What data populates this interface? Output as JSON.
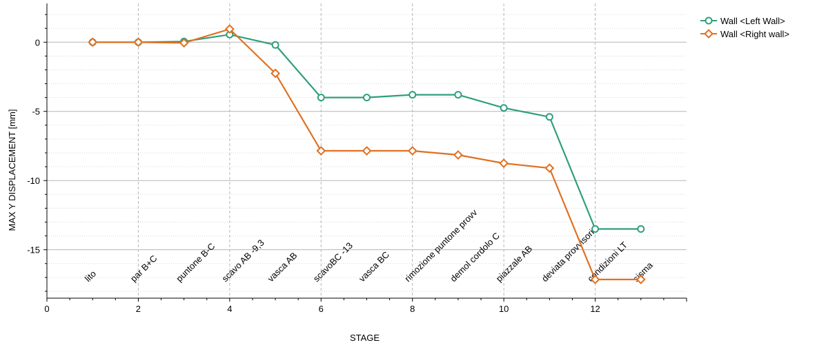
{
  "chart_data": {
    "type": "line",
    "xlabel": "STAGE",
    "ylabel": "MAX Y DISPLACEMENT [mm]",
    "xlim": [
      0,
      14
    ],
    "ylim": [
      -18.5,
      2.8
    ],
    "xticks": [
      0,
      2,
      4,
      6,
      8,
      10,
      12
    ],
    "yticks": [
      0,
      -5,
      -10,
      -15
    ],
    "grid": true,
    "legend_position": "top-right",
    "stage_labels": [
      {
        "x": 1,
        "label": "lito"
      },
      {
        "x": 2,
        "label": "par B+C"
      },
      {
        "x": 3,
        "label": "puntone B-C"
      },
      {
        "x": 4,
        "label": "scavo AB -9,3"
      },
      {
        "x": 5,
        "label": "vasca AB"
      },
      {
        "x": 6,
        "label": "scavoBC -13"
      },
      {
        "x": 7,
        "label": "vasca BC"
      },
      {
        "x": 8,
        "label": "rimozione puntone provv"
      },
      {
        "x": 9,
        "label": "demol cordolo C"
      },
      {
        "x": 10,
        "label": "piazzale AB"
      },
      {
        "x": 11,
        "label": "deviata provvisoria"
      },
      {
        "x": 12,
        "label": "condizioni LT"
      },
      {
        "x": 13,
        "label": "sisma"
      }
    ],
    "series": [
      {
        "name": "Wall <Left Wall>",
        "color": "#2e9e7e",
        "marker": "circle",
        "x": [
          1,
          2,
          3,
          4,
          5,
          6,
          7,
          8,
          9,
          10,
          11,
          12,
          13
        ],
        "values": [
          0,
          0,
          0.05,
          0.55,
          -0.2,
          -4.0,
          -4.0,
          -3.8,
          -3.8,
          -4.75,
          -5.4,
          -13.5,
          -13.5
        ]
      },
      {
        "name": "Wall <Right wall>",
        "color": "#e07020",
        "marker": "diamond",
        "x": [
          1,
          2,
          3,
          4,
          5,
          6,
          7,
          8,
          9,
          10,
          11,
          12,
          13
        ],
        "values": [
          0,
          0,
          -0.05,
          0.95,
          -2.25,
          -7.85,
          -7.85,
          -7.85,
          -8.15,
          -8.75,
          -9.1,
          -17.15,
          -17.15
        ]
      }
    ]
  }
}
